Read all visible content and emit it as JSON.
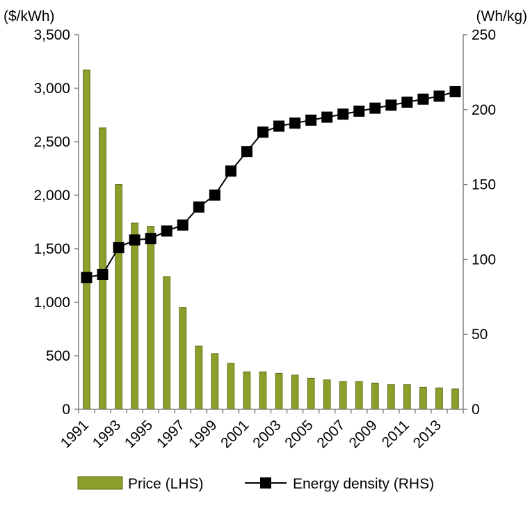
{
  "chart_data": {
    "type": "bar+line",
    "categories": [
      "1991",
      "1992",
      "1993",
      "1994",
      "1995",
      "1996",
      "1997",
      "1998",
      "1999",
      "2000",
      "2001",
      "2002",
      "2003",
      "2004",
      "2005",
      "2006",
      "2007",
      "2008",
      "2009",
      "2010",
      "2011",
      "2012",
      "2013",
      "2014"
    ],
    "x_tick_labels": [
      "1991",
      "1993",
      "1995",
      "1997",
      "1999",
      "2001",
      "2003",
      "2005",
      "2007",
      "2009",
      "2011",
      "2013"
    ],
    "left_axis": {
      "unit_label": "($/kWh)",
      "ylim": [
        0,
        3500
      ],
      "ticks": [
        0,
        500,
        1000,
        1500,
        2000,
        2500,
        3000,
        3500
      ],
      "tick_labels": [
        "0",
        "500",
        "1,000",
        "1,500",
        "2,000",
        "2,500",
        "3,000",
        "3,500"
      ]
    },
    "right_axis": {
      "unit_label": "(Wh/kg)",
      "ylim": [
        0,
        250
      ],
      "ticks": [
        0,
        50,
        100,
        150,
        200,
        250
      ],
      "tick_labels": [
        "0",
        "50",
        "100",
        "150",
        "200",
        "250"
      ]
    },
    "series": [
      {
        "name": "Price (LHS)",
        "type": "bar",
        "axis": "left",
        "color": "#8e9e2b",
        "values": [
          3170,
          2630,
          2100,
          1740,
          1710,
          1240,
          950,
          590,
          520,
          430,
          350,
          350,
          335,
          320,
          290,
          275,
          260,
          260,
          245,
          230,
          230,
          205,
          200,
          190
        ]
      },
      {
        "name": "Energy density (RHS)",
        "type": "line",
        "axis": "right",
        "color": "#000000",
        "marker": "square",
        "values": [
          88,
          90,
          108,
          113,
          114,
          119,
          123,
          135,
          143,
          159,
          172,
          185,
          189,
          191,
          193,
          195,
          197,
          199,
          201,
          203,
          205,
          207,
          209,
          212
        ]
      }
    ],
    "legend": {
      "placement": "bottom"
    },
    "grid": false
  }
}
